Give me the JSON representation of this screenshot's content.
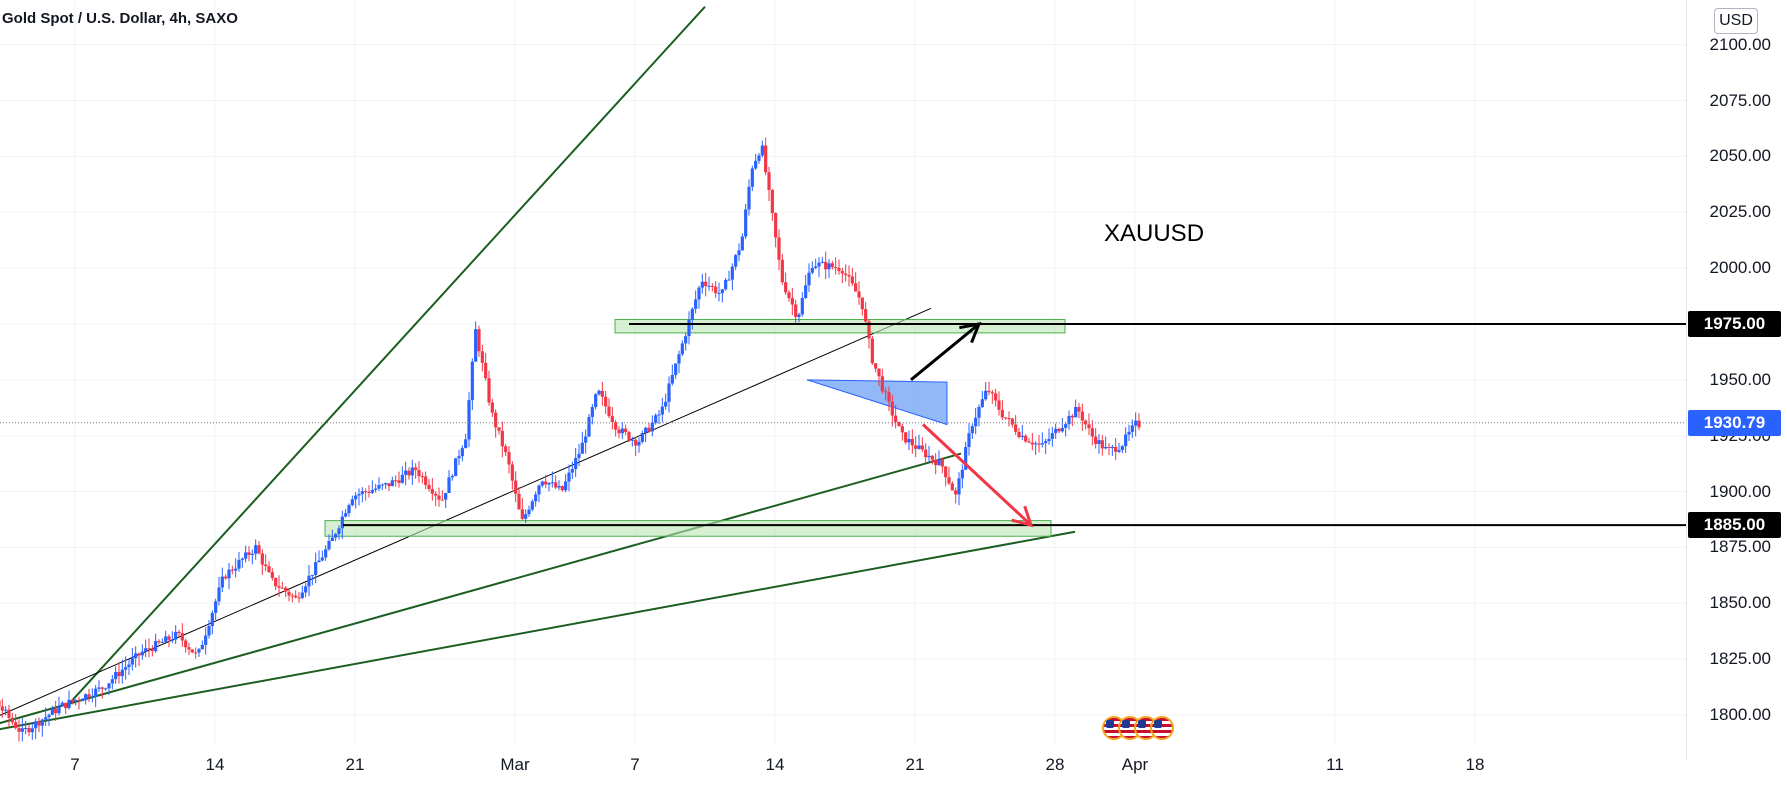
{
  "header": {
    "title": "Gold Spot / U.S. Dollar, 4h, SAXO",
    "currency": "USD"
  },
  "annotation": {
    "text": "XAUUSD"
  },
  "colors": {
    "up": "#2962ff",
    "down": "#f23645",
    "trend": "#1b5e20",
    "zone_fill": "#b9e4b0",
    "zone_border": "#4caf50",
    "wedge": "#6fa0f6",
    "arrow_up": "#000000",
    "arrow_down": "#f23645",
    "last_price_bg": "#2962ff",
    "level_bg": "#000000"
  },
  "chart_data": {
    "type": "candlestick",
    "symbol": "XAUUSD",
    "timeframe": "4h",
    "yrange": [
      1788,
      2112
    ],
    "y_ticks": [
      "1800.00",
      "1825.00",
      "1850.00",
      "1875.00",
      "1900.00",
      "1925.00",
      "1950.00",
      "1975.00",
      "2000.00",
      "2025.00",
      "2050.00",
      "2075.00",
      "2100.00"
    ],
    "y_tick_values": [
      1800,
      1825,
      1850,
      1875,
      1900,
      1925,
      1950,
      1975,
      2000,
      2025,
      2050,
      2075,
      2100
    ],
    "x_ticks": [
      "7",
      "14",
      "21",
      "Mar",
      "7",
      "14",
      "21",
      "28",
      "Apr",
      "11",
      "18"
    ],
    "x_tick_days": [
      7,
      14,
      21,
      29,
      35,
      42,
      49,
      56,
      60,
      70,
      77
    ],
    "last_price": "1930.79",
    "last_price_value": 1930.79,
    "levels": [
      {
        "label": "1975.00",
        "value": 1975
      },
      {
        "label": "1885.00",
        "value": 1885
      }
    ],
    "price_path": [
      [
        3.0,
        1808
      ],
      [
        4.5,
        1792
      ],
      [
        6.5,
        1804
      ],
      [
        8.5,
        1812
      ],
      [
        10.5,
        1828
      ],
      [
        12.3,
        1836
      ],
      [
        13.3,
        1826
      ],
      [
        14.6,
        1862
      ],
      [
        16.2,
        1875
      ],
      [
        17.0,
        1860
      ],
      [
        18.2,
        1852
      ],
      [
        20.0,
        1878
      ],
      [
        21.0,
        1898
      ],
      [
        22.8,
        1903
      ],
      [
        24.2,
        1910
      ],
      [
        25.5,
        1896
      ],
      [
        26.7,
        1925
      ],
      [
        27.2,
        1972
      ],
      [
        28.0,
        1935
      ],
      [
        28.8,
        1914
      ],
      [
        29.5,
        1886
      ],
      [
        30.5,
        1906
      ],
      [
        31.5,
        1900
      ],
      [
        32.5,
        1920
      ],
      [
        33.3,
        1945
      ],
      [
        34.3,
        1928
      ],
      [
        35.3,
        1922
      ],
      [
        36.5,
        1936
      ],
      [
        37.5,
        1965
      ],
      [
        38.5,
        1995
      ],
      [
        39.5,
        1988
      ],
      [
        40.5,
        2012
      ],
      [
        41.0,
        2045
      ],
      [
        41.5,
        2055
      ],
      [
        42.0,
        2025
      ],
      [
        42.5,
        1995
      ],
      [
        43.3,
        1978
      ],
      [
        44.0,
        2002
      ],
      [
        45.5,
        2000
      ],
      [
        46.5,
        1985
      ],
      [
        47.0,
        1960
      ],
      [
        47.8,
        1940
      ],
      [
        48.5,
        1925
      ],
      [
        49.5,
        1918
      ],
      [
        50.5,
        1912
      ],
      [
        51.2,
        1898
      ],
      [
        52.0,
        1930
      ],
      [
        52.8,
        1946
      ],
      [
        53.5,
        1935
      ],
      [
        54.5,
        1925
      ],
      [
        55.5,
        1920
      ],
      [
        56.5,
        1930
      ],
      [
        57.3,
        1937
      ],
      [
        58.0,
        1925
      ],
      [
        58.8,
        1918
      ],
      [
        59.5,
        1921
      ],
      [
        60.2,
        1930
      ]
    ],
    "trend_lines": [
      {
        "from": [
          6.5,
          1803
        ],
        "to": [
          38.5,
          2117
        ]
      },
      {
        "from": [
          1.5,
          1793
        ],
        "to": [
          49.8,
          1982
        ]
      },
      {
        "from": [
          1.5,
          1792
        ],
        "to": [
          51.3,
          1917
        ]
      },
      {
        "from": [
          1.0,
          1790
        ],
        "to": [
          57.0,
          1882
        ]
      }
    ],
    "zones": [
      {
        "from_day": 34.0,
        "to_day": 56.5,
        "low": 1971,
        "high": 1977
      },
      {
        "from_day": 19.5,
        "to_day": 55.8,
        "low": 1880,
        "high": 1887
      }
    ],
    "level_lines": [
      {
        "from_day": 34.7,
        "value": 1975
      },
      {
        "from_day": 20.4,
        "value": 1885
      }
    ],
    "wedge": {
      "points": [
        [
          43.6,
          1950
        ],
        [
          50.6,
          1949
        ],
        [
          50.6,
          1930
        ]
      ]
    },
    "arrows": [
      {
        "direction": "up",
        "from": [
          48.8,
          1950
        ],
        "to": [
          52.2,
          1975
        ]
      },
      {
        "direction": "down",
        "from": [
          49.4,
          1930
        ],
        "to": [
          54.8,
          1885
        ]
      }
    ]
  }
}
